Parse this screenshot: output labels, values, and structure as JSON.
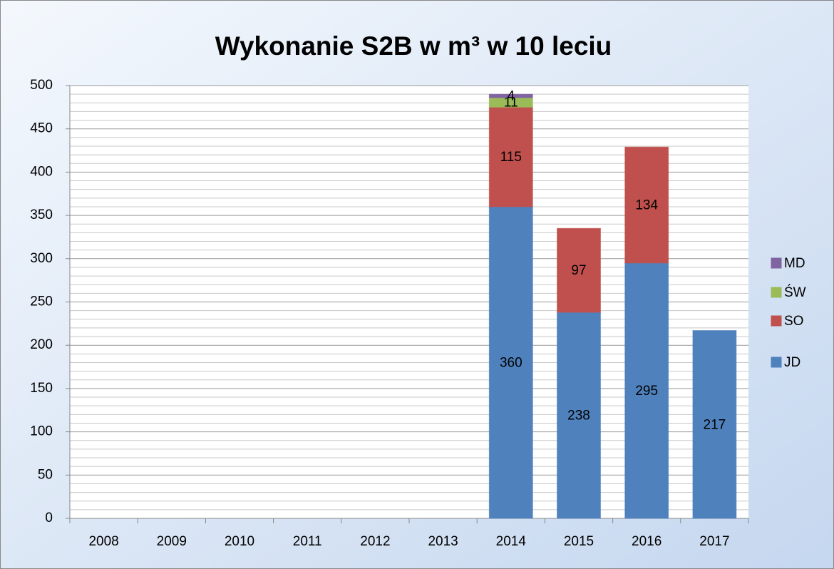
{
  "chart_data": {
    "type": "stacked_bar",
    "title": "Wykonanie S2B w m³ w 10 leciu",
    "categories": [
      "2008",
      "2009",
      "2010",
      "2011",
      "2012",
      "2013",
      "2014",
      "2015",
      "2016",
      "2017"
    ],
    "series": [
      {
        "name": "JD",
        "color": "#4f81bd",
        "values": [
          null,
          null,
          null,
          null,
          null,
          null,
          360,
          238,
          295,
          217
        ]
      },
      {
        "name": "SO",
        "color": "#c0504d",
        "values": [
          null,
          null,
          null,
          null,
          null,
          null,
          115,
          97,
          134,
          null
        ]
      },
      {
        "name": "ŚW",
        "color": "#9bbb59",
        "values": [
          null,
          null,
          null,
          null,
          null,
          null,
          11,
          null,
          null,
          null
        ]
      },
      {
        "name": "MD",
        "color": "#8064a2",
        "values": [
          null,
          null,
          null,
          null,
          null,
          null,
          4,
          null,
          null,
          null
        ]
      }
    ],
    "ylim": [
      0,
      500
    ],
    "yticks": [
      0,
      50,
      100,
      150,
      200,
      250,
      300,
      350,
      400,
      450,
      500
    ],
    "minor_yticks": [
      10,
      20,
      30,
      40,
      60,
      70,
      80,
      90,
      110,
      120,
      130,
      140,
      160,
      170,
      180,
      190,
      210,
      220,
      230,
      240,
      260,
      270,
      280,
      290,
      310,
      320,
      330,
      340,
      360,
      370,
      380,
      390,
      410,
      420,
      430,
      440,
      460,
      470,
      480,
      490
    ],
    "grid": true,
    "legend": "right"
  }
}
